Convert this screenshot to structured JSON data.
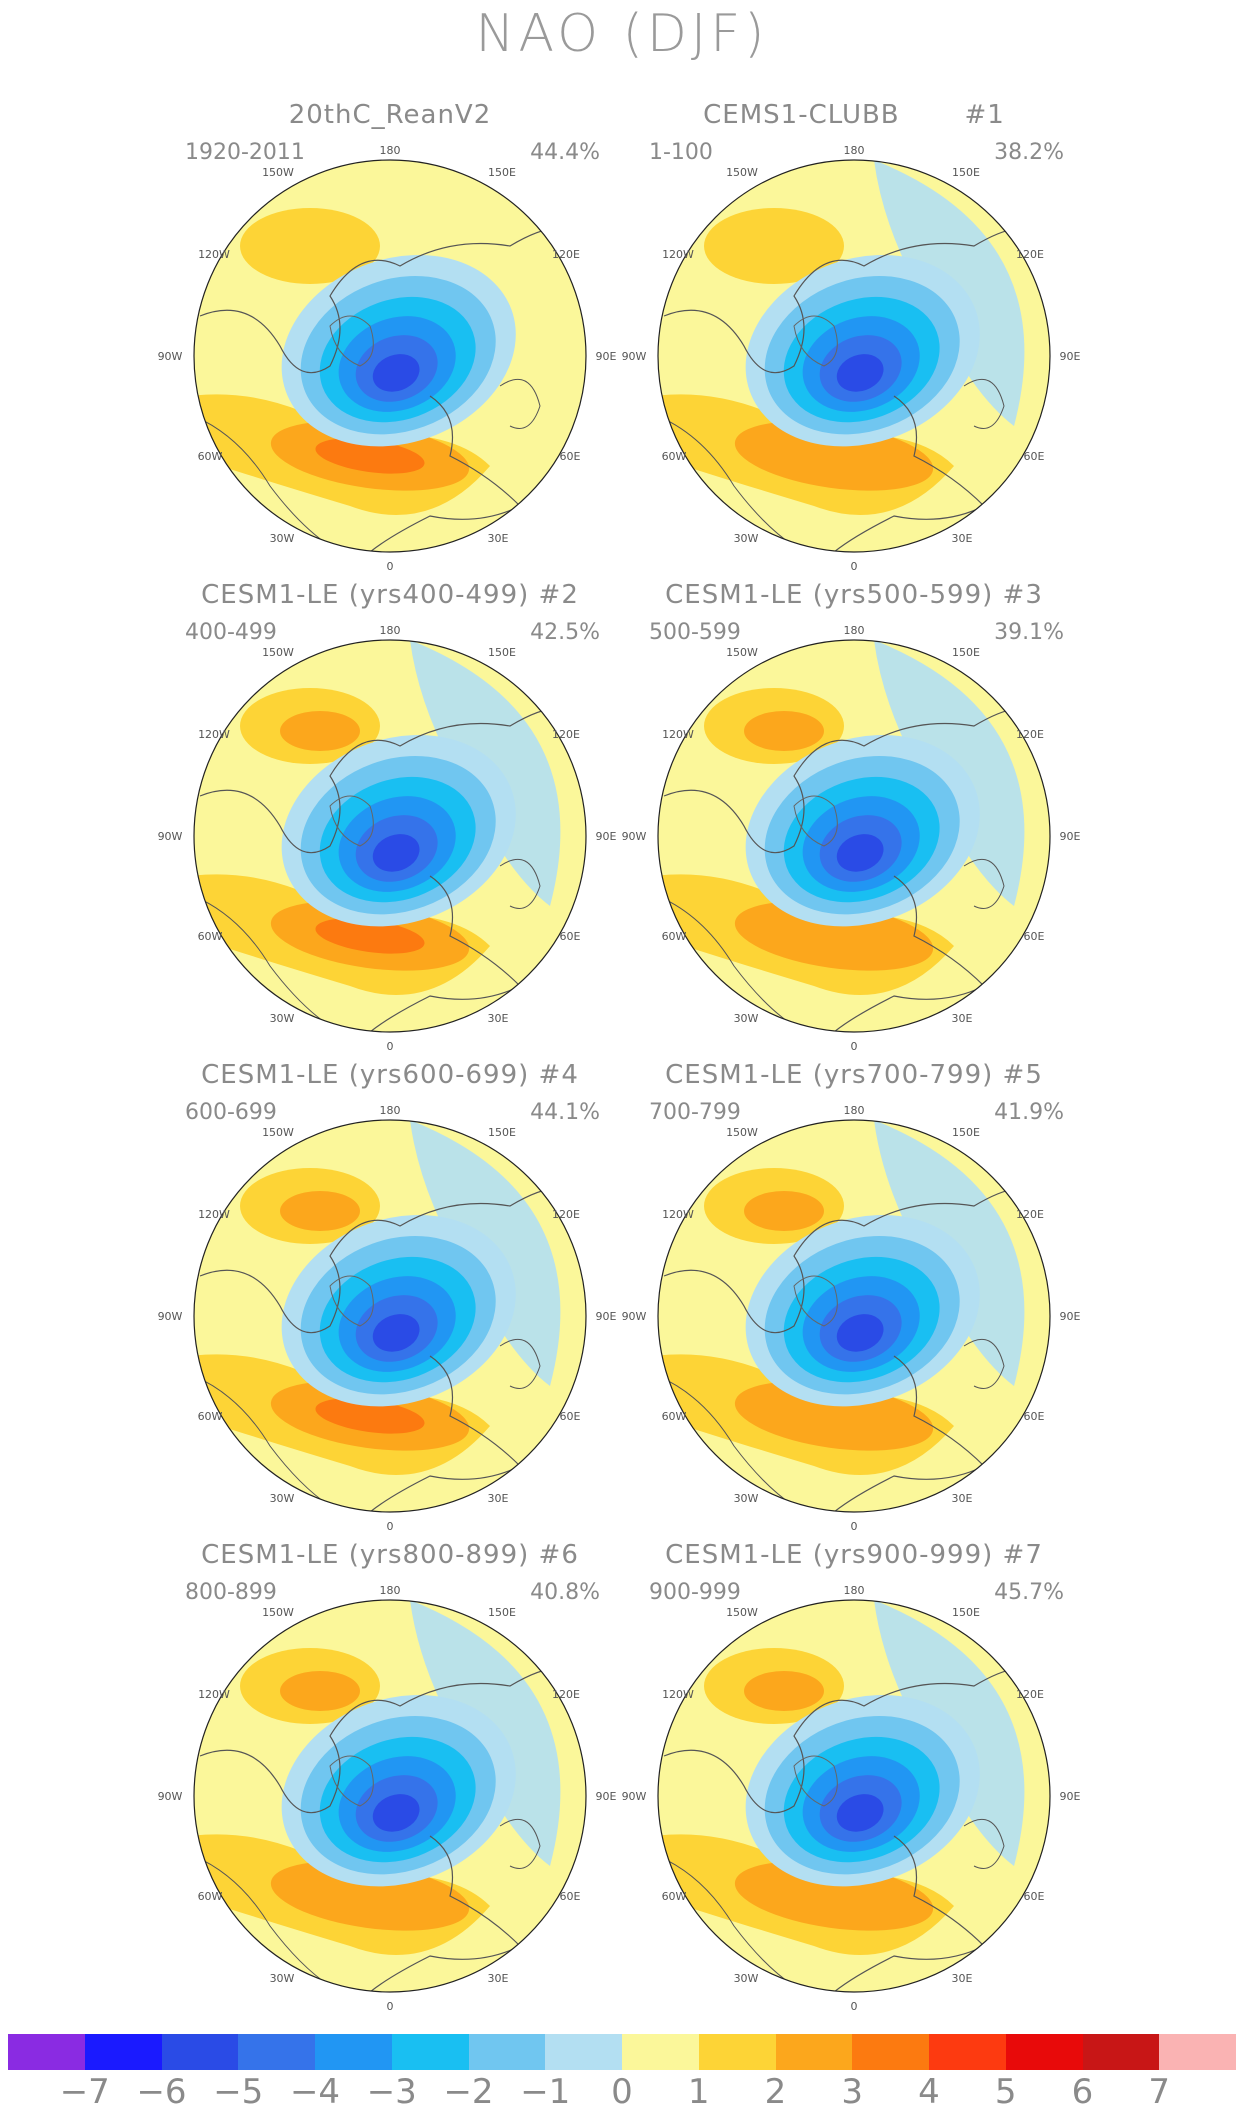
{
  "title": "NAO (DJF)",
  "lon_labels": {
    "top": "180",
    "tl": "150W",
    "tr": "150E",
    "ul": "120W",
    "ur": "120E",
    "l": "90W",
    "r": "90E",
    "ll": "60W",
    "lr": "60E",
    "bl": "30W",
    "br": "30E",
    "bottom": "0"
  },
  "panels": [
    {
      "title": "20thC_ReanV2",
      "years": "1920-2011",
      "pct": "44.4%"
    },
    {
      "title": "CEMS1-CLUBB       #1",
      "years": "1-100",
      "pct": "38.2%"
    },
    {
      "title": "CESM1-LE (yrs400-499) #2",
      "years": "400-499",
      "pct": "42.5%"
    },
    {
      "title": "CESM1-LE (yrs500-599) #3",
      "years": "500-599",
      "pct": "39.1%"
    },
    {
      "title": "CESM1-LE (yrs600-699) #4",
      "years": "600-699",
      "pct": "44.1%"
    },
    {
      "title": "CESM1-LE (yrs700-799) #5",
      "years": "700-799",
      "pct": "41.9%"
    },
    {
      "title": "CESM1-LE (yrs800-899) #6",
      "years": "800-899",
      "pct": "40.8%"
    },
    {
      "title": "CESM1-LE (yrs900-999) #7",
      "years": "900-999",
      "pct": "45.7%"
    }
  ],
  "colorbar": {
    "colors": [
      "#8a2be2",
      "#1a1aff",
      "#2a4be6",
      "#3573ea",
      "#2196f3",
      "#19bff2",
      "#70c6f0",
      "#b3dff2",
      "#fbf79a",
      "#fdd436",
      "#fca71c",
      "#fc7a10",
      "#fd3a10",
      "#e80a0a",
      "#c81616",
      "#fab3b3"
    ],
    "labels": [
      "−7",
      "−6",
      "−5",
      "−4",
      "−3",
      "−2",
      "−1",
      "0",
      "1",
      "2",
      "3",
      "4",
      "5",
      "6",
      "7"
    ]
  }
}
